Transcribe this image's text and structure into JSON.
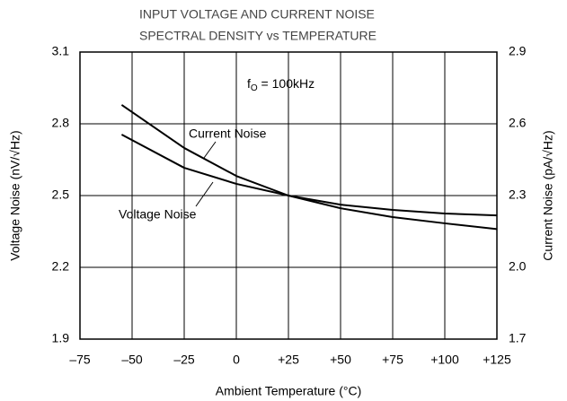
{
  "chart_data": {
    "type": "line",
    "title": [
      "INPUT VOLTAGE AND CURRENT NOISE",
      "SPECTRAL DENSITY vs TEMPERATURE"
    ],
    "annotation": {
      "text": "f",
      "sub": "O",
      "rest": " = 100kHz"
    },
    "x_label": "Ambient Temperature (°C)",
    "y_label": "Voltage Noise (nV/√Hz)",
    "y2_label": "Current Noise (pA/√Hz)",
    "x": [
      -55,
      -25,
      0,
      25,
      50,
      75,
      100,
      125
    ],
    "series": [
      {
        "name": "Voltage Noise",
        "color": "#000000",
        "values": [
          2.755,
          2.616,
          2.549,
          2.5,
          2.447,
          2.41,
          2.384,
          2.36
        ]
      },
      {
        "name": "Current Noise",
        "color": "#000000",
        "axis": "y2",
        "values": [
          2.679,
          2.499,
          2.382,
          2.3,
          2.262,
          2.24,
          2.225,
          2.217
        ]
      }
    ],
    "xlim": [
      -75,
      125
    ],
    "xticks": [
      {
        "value": -75,
        "label": "–75"
      },
      {
        "value": -50,
        "label": "–50"
      },
      {
        "value": -25,
        "label": "–25"
      },
      0,
      {
        "value": 25,
        "label": "+25"
      },
      {
        "value": 50,
        "label": "+50"
      },
      {
        "value": 75,
        "label": "+75"
      },
      {
        "value": 100,
        "label": "+100"
      },
      {
        "value": 125,
        "label": "+125"
      }
    ],
    "ylim": [
      1.9,
      3.1
    ],
    "yticks": [
      1.9,
      2.2,
      2.5,
      2.8,
      3.1
    ],
    "y2lim": [
      1.7,
      2.9
    ],
    "y2ticks": [
      1.7,
      {
        "value": 2.0,
        "label": "2.0"
      },
      2.3,
      2.6,
      2.9
    ],
    "grid": true
  }
}
